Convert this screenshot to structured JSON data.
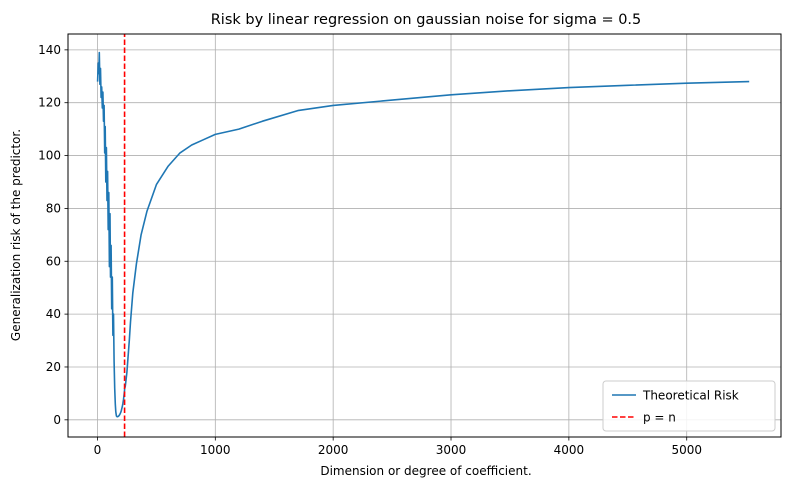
{
  "chart_data": {
    "type": "line",
    "title": "Risk by linear regression on gaussian noise for sigma = 0.5",
    "xlabel": "Dimension or degree of coefficient.",
    "ylabel": "Generalization risk of the predictor.",
    "xlim": [
      -250,
      5800
    ],
    "ylim": [
      -6.5,
      146
    ],
    "xticks": [
      0,
      1000,
      2000,
      3000,
      4000,
      5000
    ],
    "xtick_labels": [
      "0",
      "1000",
      "2000",
      "3000",
      "4000",
      "5000"
    ],
    "yticks": [
      0,
      20,
      40,
      60,
      80,
      100,
      120,
      140
    ],
    "ytick_labels": [
      "0",
      "20",
      "40",
      "60",
      "80",
      "100",
      "120",
      "140"
    ],
    "grid": true,
    "legend_position": "lower-right",
    "colors": {
      "theoretical": "#1f77b4",
      "pn_line": "#ff0000"
    },
    "n": 230,
    "series": [
      {
        "name": "Theoretical Risk",
        "style": "solid",
        "x": [
          1,
          6,
          11,
          16,
          21,
          26,
          31,
          36,
          41,
          46,
          51,
          56,
          61,
          66,
          71,
          76,
          81,
          86,
          91,
          96,
          101,
          106,
          111,
          116,
          121,
          126,
          131,
          136,
          141,
          146,
          151,
          156,
          161,
          166,
          171,
          176,
          181,
          186,
          191,
          196,
          201,
          206,
          211,
          216,
          221,
          226,
          229,
          231,
          235,
          240,
          245,
          250,
          260,
          270,
          280,
          300,
          330,
          370,
          420,
          500,
          600,
          700,
          800,
          900,
          1000,
          1200,
          1400,
          1700,
          2000,
          2500,
          3000,
          3500,
          4000,
          4500,
          5000,
          5530
        ],
        "y": [
          128,
          135,
          131,
          139,
          127,
          133,
          122,
          126,
          118,
          124,
          113,
          119,
          101,
          111,
          90,
          103,
          83,
          94,
          72,
          86,
          58,
          78,
          54,
          66,
          42,
          54,
          32,
          40,
          22,
          12,
          6,
          3,
          1.5,
          1.2,
          1.2,
          1.3,
          1.5,
          1.8,
          2.2,
          2.7,
          3.3,
          4.1,
          5.0,
          6.2,
          7.7,
          9.6,
          11,
          12,
          12.5,
          14,
          16,
          18,
          24,
          30,
          37,
          48,
          59,
          70,
          79,
          89,
          96,
          101,
          104,
          106,
          108,
          110,
          113,
          117,
          119,
          121,
          123,
          124.5,
          125.7,
          126.6,
          127.4,
          128
        ]
      },
      {
        "name": "p = n",
        "style": "dashed",
        "x": [
          230,
          230
        ],
        "y": [
          -6.5,
          146
        ]
      }
    ]
  }
}
